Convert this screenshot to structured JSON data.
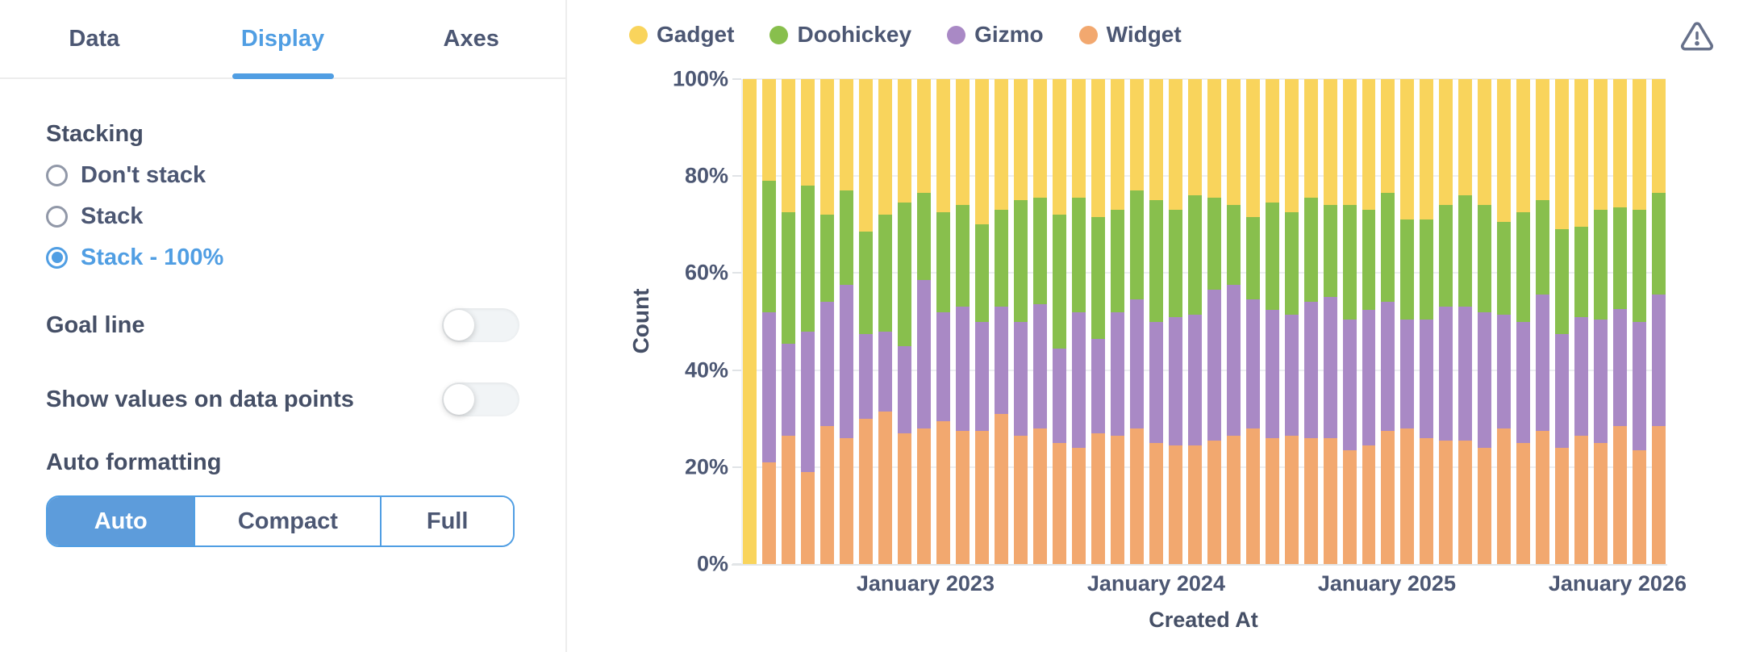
{
  "colors": {
    "accent_blue": "#509EE3",
    "selected_segment_blue": "#5D9CDB",
    "text_dark": "#4C5773",
    "divider": "#EDEDED",
    "gridline": "#EDEFF1"
  },
  "icons": {
    "warning": "alert-triangle"
  },
  "panel": {
    "tabs": [
      {
        "label": "Data",
        "active": false
      },
      {
        "label": "Display",
        "active": true
      },
      {
        "label": "Axes",
        "active": false
      }
    ],
    "stacking": {
      "label": "Stacking",
      "options": [
        {
          "label": "Don't stack",
          "selected": false
        },
        {
          "label": "Stack",
          "selected": false
        },
        {
          "label": "Stack - 100%",
          "selected": true
        }
      ]
    },
    "toggles": [
      {
        "label": "Goal line",
        "on": false
      },
      {
        "label": "Show values on data points",
        "on": false
      }
    ],
    "formatting": {
      "label": "Auto formatting",
      "options": [
        {
          "label": "Auto",
          "selected": true
        },
        {
          "label": "Compact",
          "selected": false
        },
        {
          "label": "Full",
          "selected": false
        }
      ]
    }
  },
  "chart_data": {
    "type": "bar",
    "stacking": "100%",
    "title": "",
    "xlabel": "Created At",
    "ylabel": "Count",
    "ylim": [
      0,
      100
    ],
    "grid": true,
    "legend_position": "top",
    "y_ticks": [
      "0%",
      "20%",
      "40%",
      "60%",
      "80%",
      "100%"
    ],
    "x_ticks": [
      {
        "label": "January 2023",
        "index": 9
      },
      {
        "label": "January 2024",
        "index": 21
      },
      {
        "label": "January 2025",
        "index": 33
      },
      {
        "label": "January 2026",
        "index": 45
      }
    ],
    "legend": [
      {
        "name": "Gadget",
        "color": "#F9D45C"
      },
      {
        "name": "Doohickey",
        "color": "#88BF4D"
      },
      {
        "name": "Gizmo",
        "color": "#A989C5"
      },
      {
        "name": "Widget",
        "color": "#F2A86F"
      }
    ],
    "series_order_bottom_to_top": [
      "Widget",
      "Gizmo",
      "Doohickey",
      "Gadget"
    ],
    "bars_percent": [
      [
        0,
        0,
        0,
        100
      ],
      [
        21,
        31,
        27,
        21
      ],
      [
        26.5,
        19,
        27,
        27.5
      ],
      [
        19,
        29,
        30,
        22
      ],
      [
        28.5,
        25.5,
        18,
        28
      ],
      [
        26,
        31.5,
        19.5,
        23
      ],
      [
        30,
        17.5,
        21,
        31.5
      ],
      [
        31.5,
        16.5,
        24,
        28
      ],
      [
        27,
        18,
        29.5,
        25.5
      ],
      [
        28,
        30.5,
        18,
        23.5
      ],
      [
        29.5,
        22.5,
        20.5,
        27.5
      ],
      [
        27.5,
        25.5,
        21,
        26
      ],
      [
        27.5,
        22.5,
        20,
        30
      ],
      [
        31,
        22,
        20,
        27
      ],
      [
        26.5,
        23.5,
        25,
        25
      ],
      [
        28,
        25.5,
        22,
        24.5
      ],
      [
        25,
        19.5,
        27.5,
        28
      ],
      [
        24,
        28,
        23.5,
        24.5
      ],
      [
        27,
        19.5,
        25,
        28.5
      ],
      [
        26.5,
        25.5,
        21,
        27
      ],
      [
        28,
        26.5,
        22.5,
        23
      ],
      [
        25,
        25,
        25,
        25
      ],
      [
        24.5,
        26.5,
        22,
        27
      ],
      [
        24.5,
        27,
        24.5,
        24
      ],
      [
        25.5,
        31,
        19,
        24.5
      ],
      [
        26.5,
        31,
        16.5,
        26
      ],
      [
        28,
        26.5,
        17,
        28.5
      ],
      [
        26,
        26.5,
        22,
        25.5
      ],
      [
        26.5,
        25,
        21,
        27.5
      ],
      [
        26,
        28,
        21.5,
        24.5
      ],
      [
        26,
        29,
        19,
        26
      ],
      [
        23.5,
        27,
        23.5,
        26
      ],
      [
        24.5,
        28,
        20.5,
        27
      ],
      [
        27.5,
        26.5,
        22.5,
        23.5
      ],
      [
        28,
        22.5,
        20.5,
        29
      ],
      [
        26,
        24.5,
        20.5,
        29
      ],
      [
        25.5,
        27.5,
        21,
        26
      ],
      [
        25.5,
        27.5,
        23,
        24
      ],
      [
        24,
        28,
        22,
        26
      ],
      [
        28,
        23.5,
        19,
        29.5
      ],
      [
        25,
        25,
        22.5,
        27.5
      ],
      [
        27.5,
        28,
        19.5,
        25
      ],
      [
        24,
        23.5,
        21.5,
        31
      ],
      [
        26.5,
        24.5,
        18.5,
        30.5
      ],
      [
        25,
        25.5,
        22.5,
        27
      ],
      [
        28.5,
        24,
        21,
        26.5
      ],
      [
        23.5,
        26.5,
        23,
        27
      ],
      [
        28.5,
        27,
        21,
        23.5
      ]
    ]
  }
}
